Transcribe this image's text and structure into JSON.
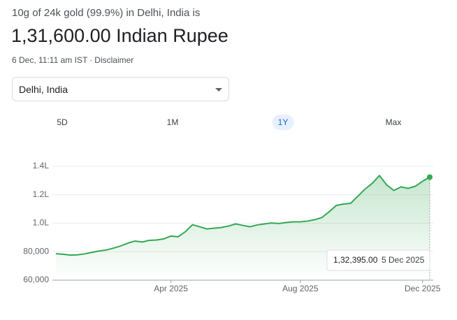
{
  "header": {
    "subtitle": "10g of 24k gold (99.9%) in Delhi, India is",
    "price": "1,31,600.00 Indian Rupee",
    "timestamp": "6 Dec, 11:11 am IST",
    "separator": "·",
    "disclaimer": "Disclaimer"
  },
  "location_select": {
    "value": "Delhi, India"
  },
  "range_tabs": {
    "items": [
      "5D",
      "1M",
      "1Y",
      "Max"
    ],
    "selected": 2
  },
  "chart_data": {
    "type": "line",
    "color": "#34a853",
    "grid": true,
    "categories": [
      null,
      null,
      null,
      null,
      null,
      null,
      null,
      null,
      null,
      null,
      null,
      null,
      null,
      null,
      null,
      null,
      "Apr 2025",
      null,
      null,
      null,
      null,
      null,
      null,
      null,
      null,
      null,
      null,
      null,
      null,
      null,
      null,
      null,
      null,
      null,
      "Aug 2025",
      null,
      null,
      null,
      null,
      null,
      null,
      null,
      null,
      null,
      null,
      null,
      null,
      null,
      null,
      null,
      null,
      "Dec 2025",
      null
    ],
    "values": [
      78600,
      78200,
      77600,
      77800,
      78500,
      79500,
      80500,
      81200,
      82500,
      84000,
      86000,
      87500,
      86800,
      88000,
      88200,
      89000,
      91000,
      90500,
      94000,
      99000,
      97500,
      96000,
      96500,
      97000,
      98000,
      99500,
      98500,
      97500,
      98800,
      99500,
      100200,
      99800,
      100500,
      101000,
      101000,
      101500,
      102500,
      104000,
      108000,
      112500,
      113500,
      114000,
      119000,
      124000,
      128000,
      133500,
      127000,
      123000,
      125500,
      124500,
      126000,
      129500,
      132395
    ],
    "value_labels": [
      null,
      null,
      null,
      null,
      null,
      null,
      null,
      null,
      null,
      null,
      null,
      null,
      null,
      null,
      null,
      null,
      null,
      null,
      null,
      null,
      null,
      null,
      null,
      null,
      null,
      null,
      null,
      null,
      null,
      null,
      null,
      null,
      null,
      null,
      null,
      null,
      null,
      null,
      null,
      null,
      null,
      null,
      null,
      null,
      null,
      null,
      null,
      null,
      null,
      null,
      null,
      null,
      "1,32,395.00"
    ],
    "tooltip_date": "5 Dec 2025",
    "ylim": [
      60000,
      140000
    ],
    "yticks": [
      {
        "value": 60000,
        "label": "60,000"
      },
      {
        "value": 80000,
        "label": "80,000"
      },
      {
        "value": 100000,
        "label": "1.0L"
      },
      {
        "value": 120000,
        "label": "1.2L"
      },
      {
        "value": 140000,
        "label": "1.4L"
      }
    ]
  }
}
